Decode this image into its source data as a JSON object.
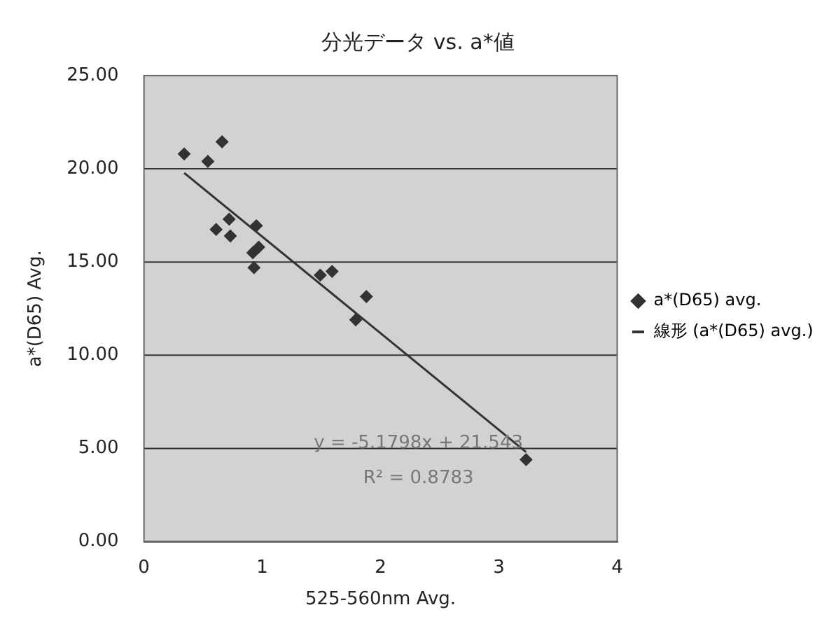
{
  "chart_data": {
    "type": "scatter",
    "title": "分光データ vs. a*値",
    "xlabel": "525-560nm Avg.",
    "ylabel": "a*(D65) Avg.",
    "series": [
      {
        "name": "a*(D65) avg.",
        "color": "#333333",
        "marker": "diamond",
        "x": [
          0.34,
          0.54,
          0.66,
          0.61,
          0.72,
          0.73,
          0.95,
          0.92,
          0.97,
          0.93,
          1.49,
          1.59,
          1.88,
          1.79,
          3.23
        ],
        "values": [
          20.8,
          20.4,
          21.45,
          16.75,
          17.3,
          16.4,
          16.95,
          15.5,
          15.8,
          14.7,
          14.3,
          14.5,
          13.15,
          11.9,
          4.4
        ]
      },
      {
        "name": "線形 (a*(D65) avg.)",
        "type": "line",
        "color": "#333333",
        "marker": "none",
        "line_style": "solid",
        "x": [
          0.34,
          3.23
        ],
        "values": [
          19.78,
          4.81
        ]
      }
    ],
    "xlim": [
      0,
      4
    ],
    "xticks": [
      0,
      1,
      2,
      3,
      4
    ],
    "ylim": [
      0,
      25
    ],
    "yticks": [
      {
        "value": 0,
        "label": "0.00"
      },
      {
        "value": 5,
        "label": "5.00"
      },
      {
        "value": 10,
        "label": "10.00"
      },
      {
        "value": 15,
        "label": "15.00"
      },
      {
        "value": 20,
        "label": "20.00"
      },
      {
        "value": 25,
        "label": "25.00"
      }
    ],
    "grid": "y",
    "legend": "right",
    "annotations": [
      "y = -5.1798x + 21.543",
      "R² = 0.8783"
    ]
  }
}
